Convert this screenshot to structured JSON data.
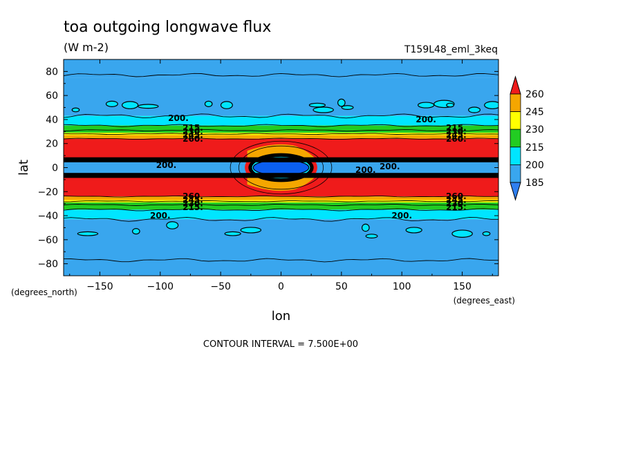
{
  "title": "toa outgoing longwave flux",
  "units": "(W m-2)",
  "run_label": "T159L48_eml_3keq",
  "contour_interval": "CONTOUR INTERVAL = 7.500E+00",
  "colors": {
    "lt185": "#2f7ff0",
    "c185": "#39a6ee",
    "c200": "#00e5ff",
    "c215": "#22cc22",
    "c230": "#ffff00",
    "c245": "#f5a600",
    "c260": "#ef1b1b",
    "deep": "#0b5ff0"
  },
  "chart_data": {
    "type": "contour",
    "title": "toa outgoing longwave flux",
    "units": "(W m-2)",
    "xlabel": "lon",
    "ylabel": "lat",
    "xunit": "(degrees_east)",
    "yunit": "(degrees_north)",
    "xlim": [
      -180,
      180
    ],
    "ylim": [
      -90,
      90
    ],
    "xticks": [
      -150,
      -100,
      -50,
      0,
      50,
      100,
      150
    ],
    "yticks": [
      -80,
      -60,
      -40,
      -20,
      0,
      20,
      40,
      60,
      80
    ],
    "colorbar": {
      "levels": [
        185,
        200,
        215,
        230,
        245,
        260
      ],
      "extend": "both"
    },
    "contour_labels": [
      "200.",
      "215.",
      "230.",
      "245.",
      "260."
    ],
    "contour_interval": 7.5,
    "bands": [
      {
        "min": 75,
        "max": 90,
        "level": "c185"
      },
      {
        "min": 43,
        "max": 75,
        "level": "c185"
      },
      {
        "min": 35,
        "max": 43,
        "level": "c200"
      },
      {
        "min": 29,
        "max": 35,
        "level": "c215"
      },
      {
        "min": 27,
        "max": 29,
        "level": "c230"
      },
      {
        "min": 24,
        "max": 27,
        "level": "c245"
      },
      {
        "min": 8,
        "max": 24,
        "level": "c260"
      },
      {
        "min": 5,
        "max": 8,
        "level": "c200"
      },
      {
        "min": -5,
        "max": 5,
        "level": "c185"
      },
      {
        "min": -8,
        "max": -5,
        "level": "c200"
      },
      {
        "min": -24,
        "max": -8,
        "level": "c260"
      },
      {
        "min": -27,
        "max": -24,
        "level": "c245"
      },
      {
        "min": -29,
        "max": -27,
        "level": "c230"
      },
      {
        "min": -35,
        "max": -29,
        "level": "c215"
      },
      {
        "min": -43,
        "max": -35,
        "level": "c200"
      },
      {
        "min": -90,
        "max": -43,
        "level": "c185"
      }
    ]
  }
}
